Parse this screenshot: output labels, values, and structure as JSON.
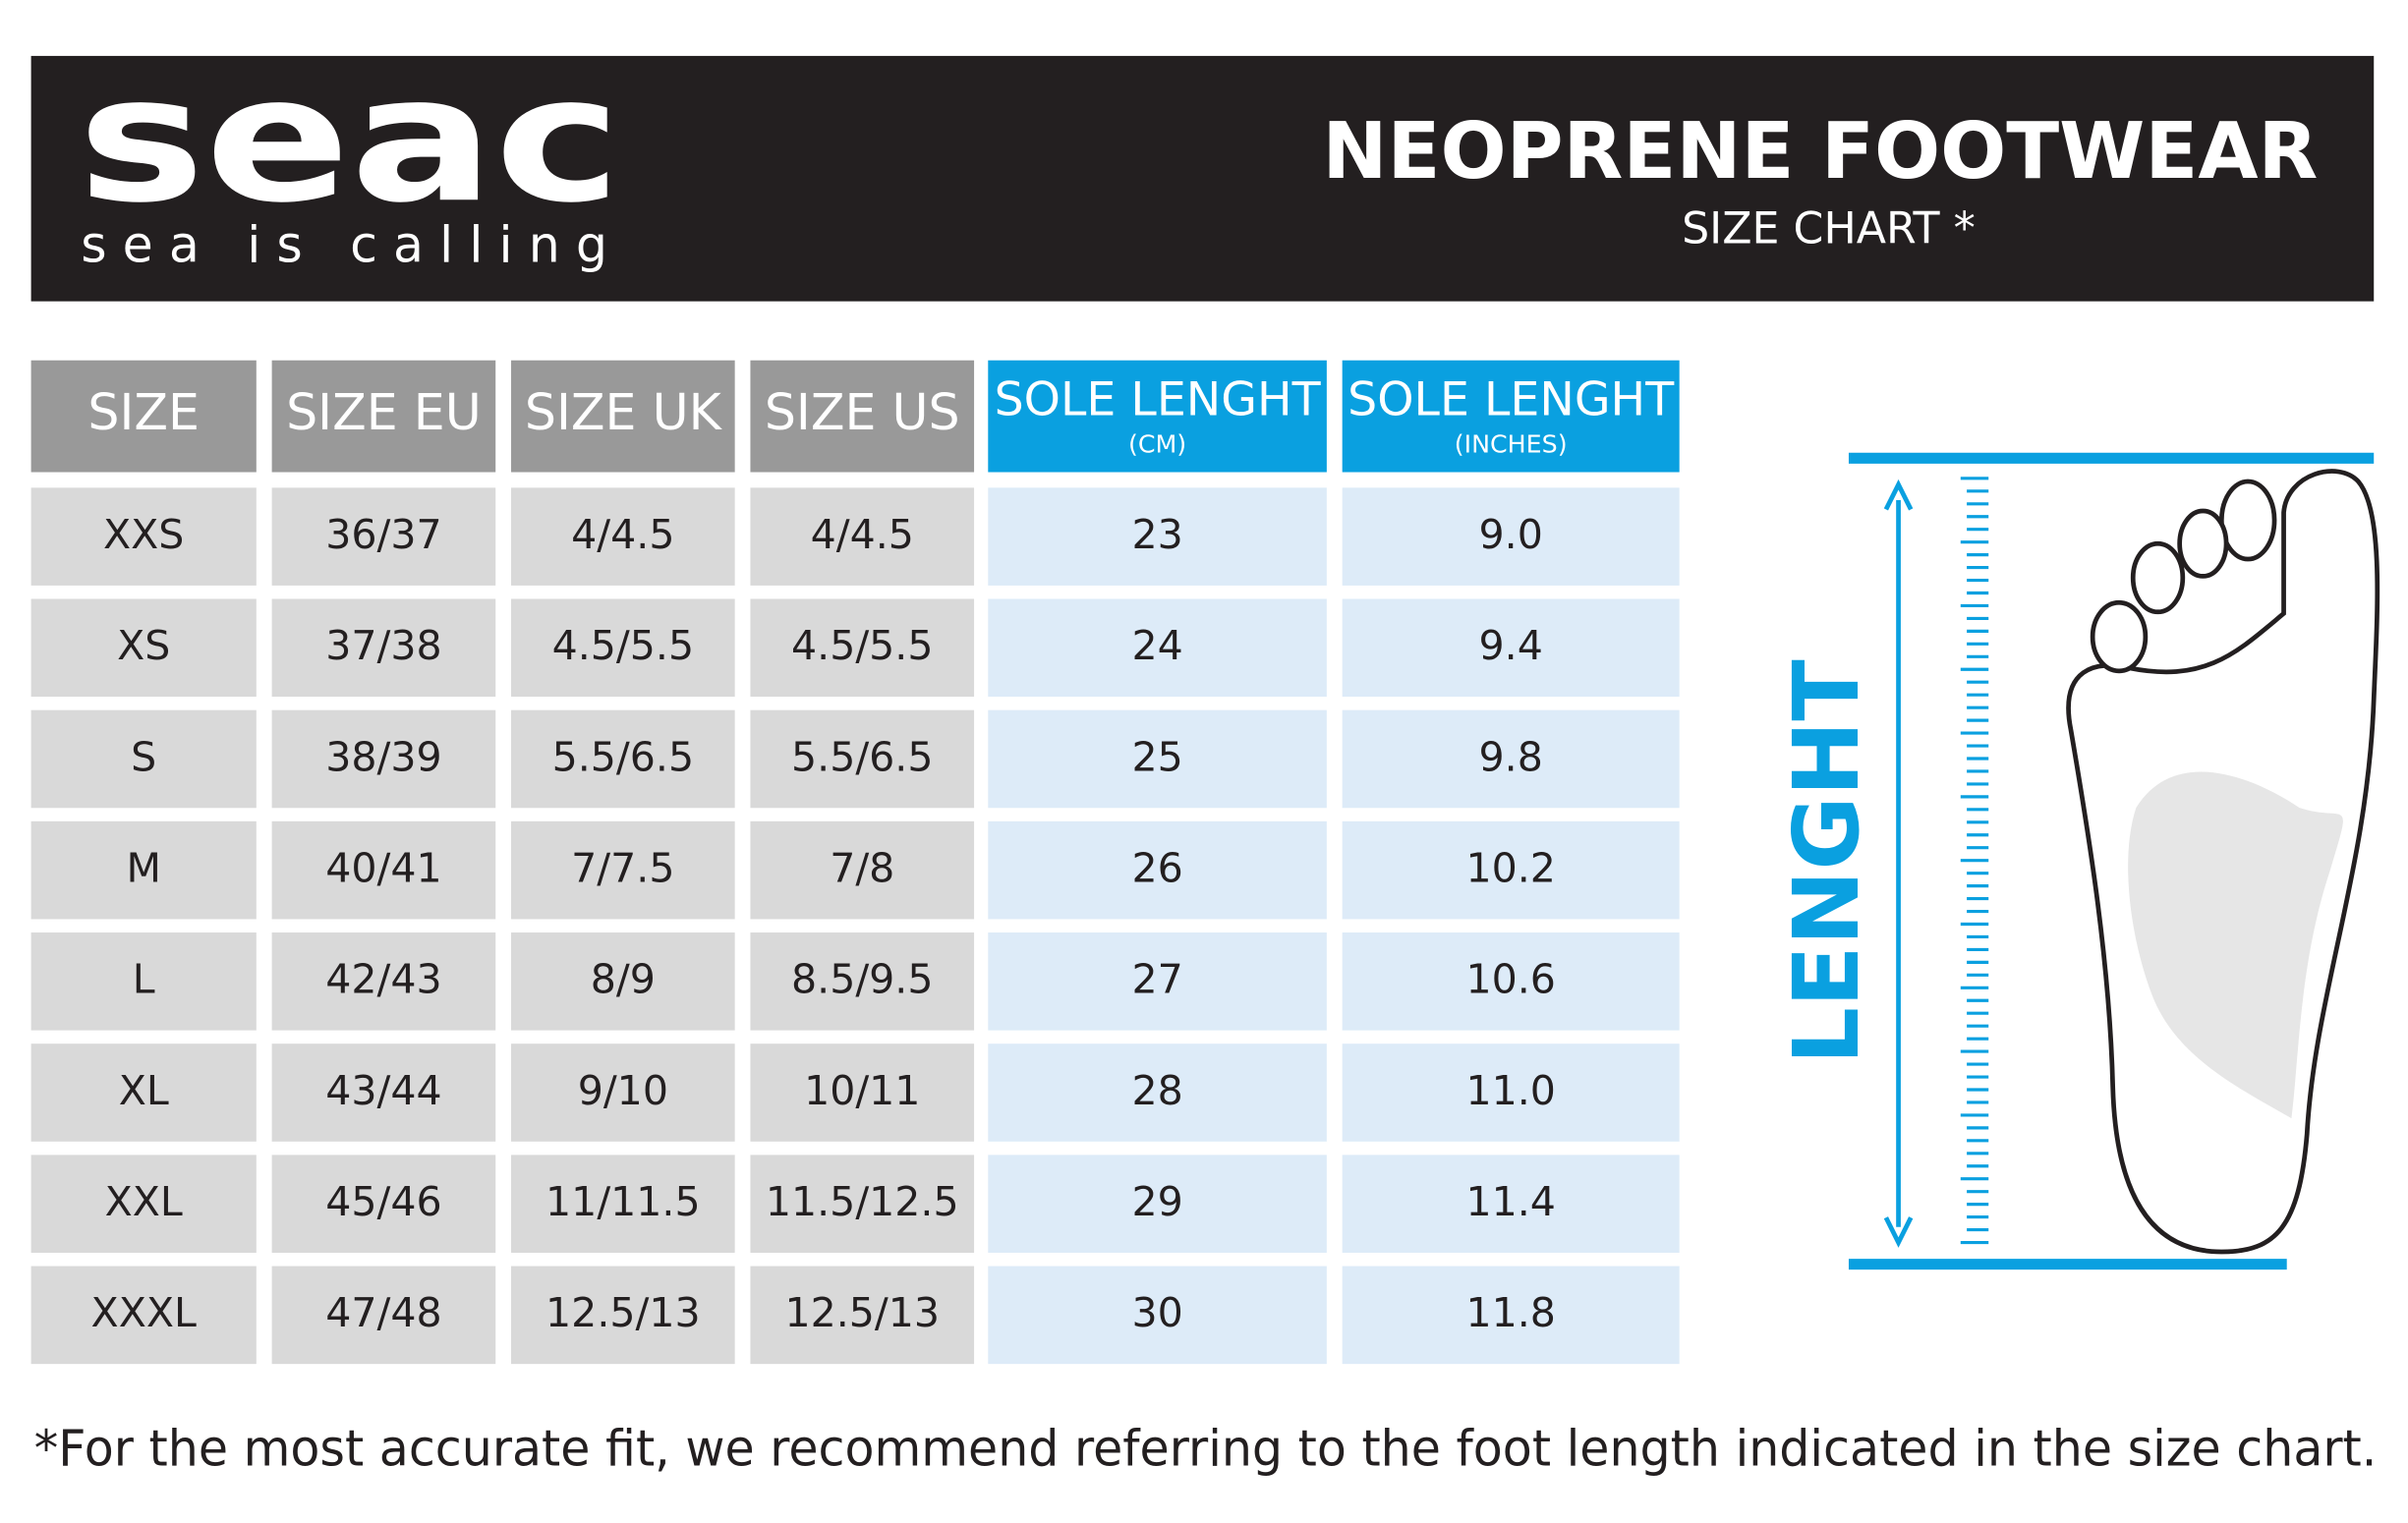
{
  "header": {
    "logo": "seac",
    "tagline": "sea is calling",
    "title": "NEOPRENE FOOTWEAR",
    "subtitle": "SIZE CHART *"
  },
  "table": {
    "columns": [
      {
        "label": "SIZE"
      },
      {
        "label": "SIZE EU"
      },
      {
        "label": "SIZE UK"
      },
      {
        "label": "SIZE US"
      },
      {
        "label": "SOLE LENGHT",
        "unit": "(CM)"
      },
      {
        "label": "SOLE LENGHT",
        "unit": "(INCHES)"
      }
    ],
    "rows": [
      [
        "XXS",
        "36/37",
        "4/4.5",
        "4/4.5",
        "23",
        "9.0"
      ],
      [
        "XS",
        "37/38",
        "4.5/5.5",
        "4.5/5.5",
        "24",
        "9.4"
      ],
      [
        "S",
        "38/39",
        "5.5/6.5",
        "5.5/6.5",
        "25",
        "9.8"
      ],
      [
        "M",
        "40/41",
        "7/7.5",
        "7/8",
        "26",
        "10.2"
      ],
      [
        "L",
        "42/43",
        "8/9",
        "8.5/9.5",
        "27",
        "10.6"
      ],
      [
        "XL",
        "43/44",
        "9/10",
        "10/11",
        "28",
        "11.0"
      ],
      [
        "XXL",
        "45/46",
        "11/11.5",
        "11.5/12.5",
        "29",
        "11.4"
      ],
      [
        "XXXL",
        "47/48",
        "12.5/13",
        "12.5/13",
        "30",
        "11.8"
      ]
    ]
  },
  "diagram": {
    "label": "LENGHT"
  },
  "footnote": "*For the most accurate fit, we recommend referring to the foot length indicated in the size chart."
}
